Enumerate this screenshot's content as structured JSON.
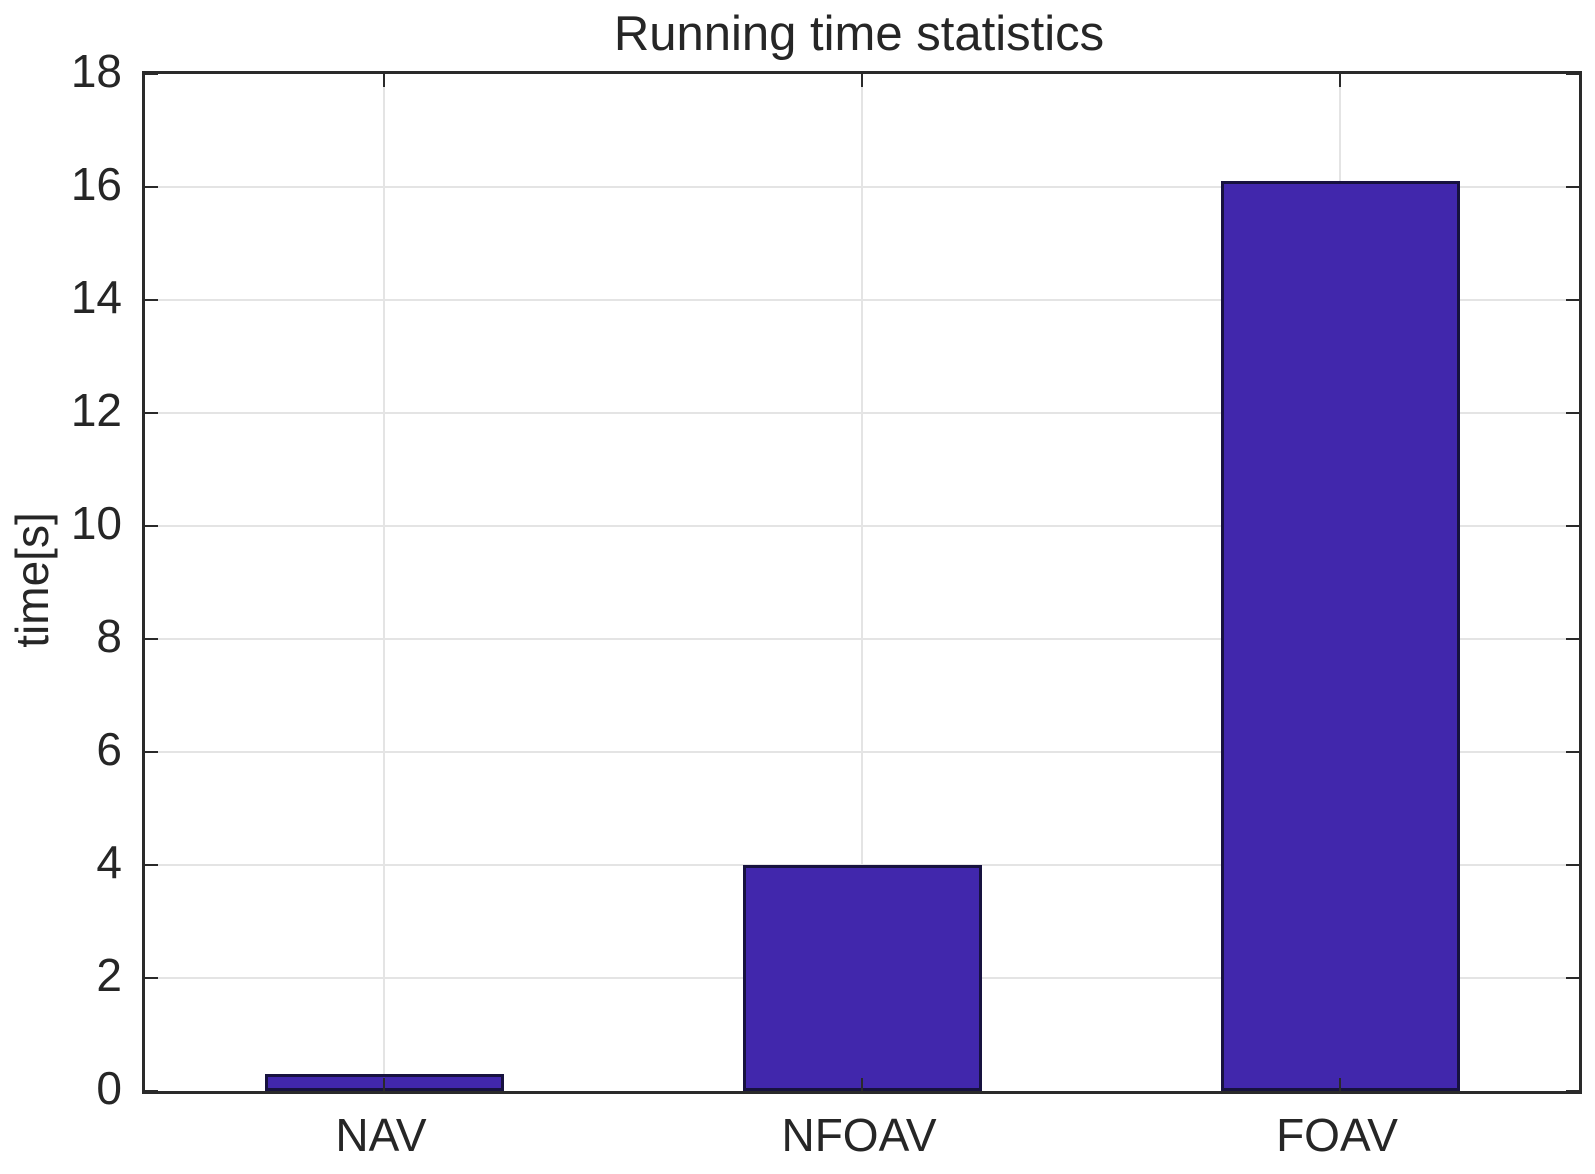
{
  "chart_data": {
    "type": "bar",
    "title": "Running time statistics",
    "categories": [
      "NAV",
      "NFOAV",
      "FOAV"
    ],
    "values": [
      0.3,
      4.0,
      16.1
    ],
    "xlabel": "",
    "ylabel": "time[s]",
    "ylim": [
      0,
      18
    ],
    "yticks": [
      0,
      2,
      4,
      6,
      8,
      10,
      12,
      14,
      16,
      18
    ],
    "grid": true,
    "legend_position": "none",
    "bar_width_fraction": 0.5,
    "colors": {
      "bar_fill": "#4127AC",
      "bar_edge": "#17123F",
      "axis": "#2A2A2A",
      "grid": "#E4E4E4",
      "text": "#262626",
      "background": "#FFFFFF"
    }
  }
}
